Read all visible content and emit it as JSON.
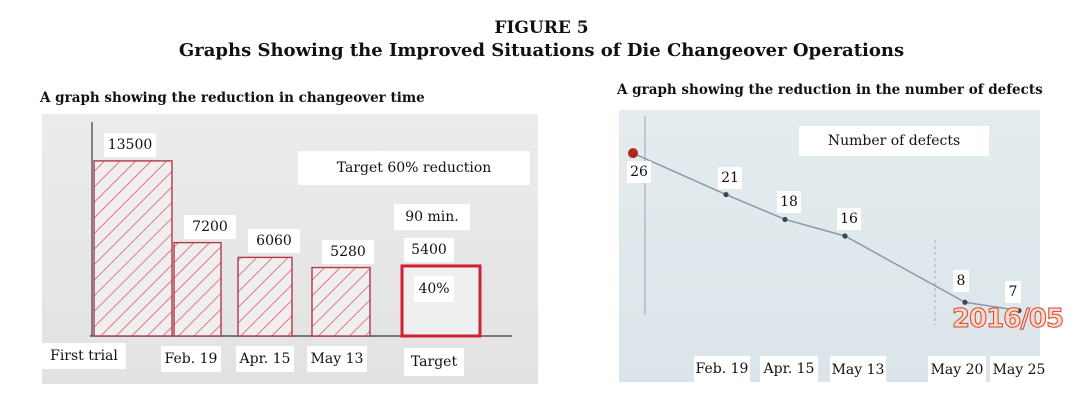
{
  "figure": {
    "number": "FIGURE 5",
    "title": "Graphs Showing the Improved Situations of Die Changeover Operations"
  },
  "chart_data": [
    {
      "type": "bar",
      "title": "A graph showing the reduction in changeover time",
      "categories": [
        "First trial",
        "Feb. 19",
        "Apr. 15",
        "May 13",
        "Target"
      ],
      "values": [
        13500,
        7200,
        6060,
        5280,
        5400
      ],
      "data_labels": [
        "13500",
        "7200",
        "6060",
        "5280",
        "5400"
      ],
      "ylim": [
        0,
        16500
      ],
      "grid": false,
      "colors": {
        "bar_hatch": "#d95a6a",
        "bar_outline": "#b23a4a",
        "target_outline": "#d21f33",
        "axis": "#555555"
      },
      "annotations": {
        "target_reduction": "Target 60% reduction",
        "target_time": "90 min.",
        "target_percent": "40%"
      }
    },
    {
      "type": "line",
      "title": "A graph showing the reduction in the number of defects",
      "categories": [
        "",
        "Feb. 19",
        "Apr. 15",
        "May 13",
        "May 20",
        "May 25"
      ],
      "values": [
        26,
        21,
        18,
        16,
        8,
        7
      ],
      "data_labels": [
        "26",
        "21",
        "18",
        "16",
        "8",
        "7"
      ],
      "ylim": [
        2,
        30
      ],
      "grid": false,
      "legend": {
        "label": "Number of defects",
        "position": "top-right"
      },
      "colors": {
        "line": "#8c98a4",
        "marker": "#3d4650",
        "first_marker": "#b3261e"
      },
      "photo_stamp": "2016/05"
    }
  ]
}
